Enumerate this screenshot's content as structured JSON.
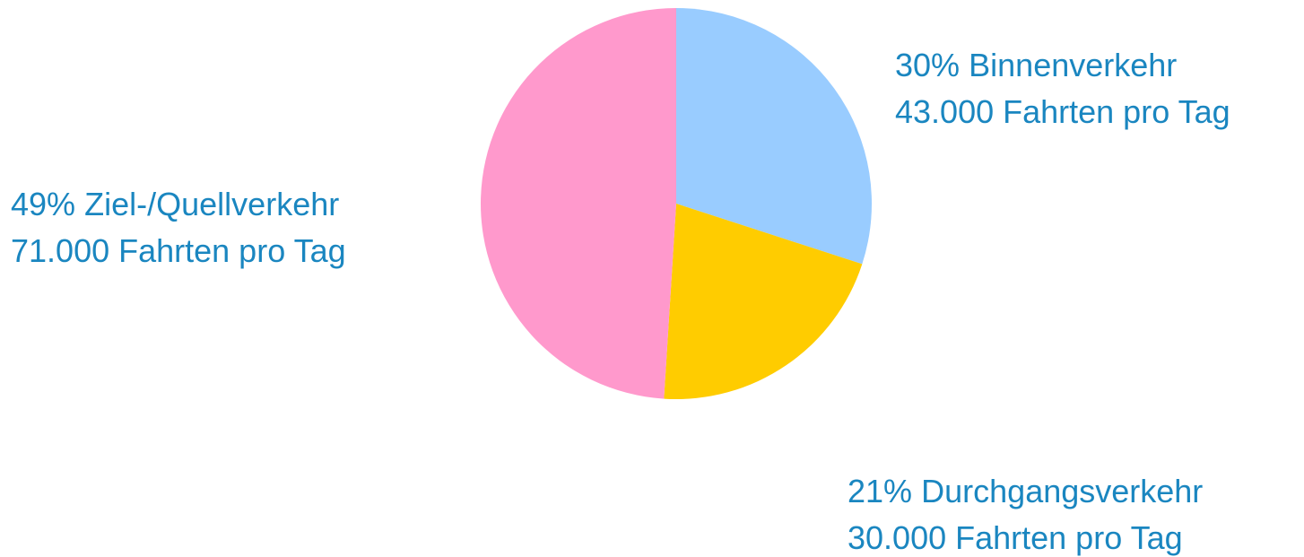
{
  "chart_data": {
    "type": "pie",
    "categories": [
      "Binnenverkehr",
      "Durchgangsverkehr",
      "Ziel-/Quellverkehr"
    ],
    "values": [
      30,
      21,
      49
    ],
    "value_labels": [
      "30%",
      "21%",
      "49%"
    ],
    "trip_labels": [
      "43.000 Fahrten pro Tag",
      "30.000 Fahrten pro Tag",
      "71.000 Fahrten pro Tag"
    ],
    "colors": [
      "#99ccff",
      "#ffcc00",
      "#ff99cc"
    ],
    "label_color": "#1a86c0"
  }
}
